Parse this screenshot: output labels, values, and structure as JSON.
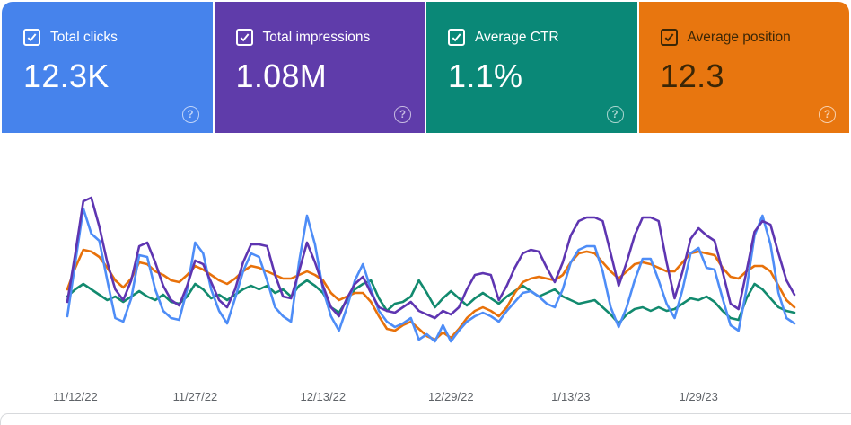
{
  "cards": [
    {
      "id": "total-clicks",
      "label": "Total clicks",
      "value": "12.3K",
      "bg": "#4683ec",
      "fg": "#ffffff",
      "help_fg": "#ffffff",
      "checked": true
    },
    {
      "id": "total-impressions",
      "label": "Total impressions",
      "value": "1.08M",
      "bg": "#5f3caa",
      "fg": "#ffffff",
      "help_fg": "#ffffff",
      "checked": true
    },
    {
      "id": "average-ctr",
      "label": "Average CTR",
      "value": "1.1%",
      "bg": "#0a8877",
      "fg": "#ffffff",
      "help_fg": "#ffffff",
      "checked": true
    },
    {
      "id": "average-position",
      "label": "Average position",
      "value": "12.3",
      "bg": "#e8760f",
      "fg": "#3b2606",
      "help_fg": "#ffffff",
      "checked": true
    }
  ],
  "icons": {
    "help_glyph": "?",
    "checkbox_state": "checked"
  },
  "chart_data": {
    "type": "line",
    "title": "",
    "xlabel": "",
    "ylabel": "",
    "y_axis": "hidden - each series independently normalized; values are % of plot height (0 = bottom, 100 = top)",
    "grid": false,
    "legend_position": "none (metric cards above act as legend)",
    "tick_color": "#5f6368",
    "x_ticks": [
      {
        "label": "11/12/22",
        "day": 1
      },
      {
        "label": "11/27/22",
        "day": 16
      },
      {
        "label": "12/13/22",
        "day": 32
      },
      {
        "label": "12/29/22",
        "day": 48
      },
      {
        "label": "1/13/23",
        "day": 63
      },
      {
        "label": "1/29/23",
        "day": 79
      }
    ],
    "n_points": 92,
    "series": [
      {
        "name": "Total clicks",
        "color": "#4e8df7",
        "values": [
          25,
          55,
          85,
          71,
          67,
          45,
          24,
          22,
          35,
          59,
          58,
          40,
          28,
          24,
          23,
          40,
          66,
          60,
          40,
          28,
          21,
          35,
          50,
          60,
          58,
          45,
          30,
          25,
          22,
          55,
          81,
          65,
          40,
          25,
          17,
          30,
          45,
          54,
          40,
          28,
          22,
          19,
          21,
          24,
          12,
          15,
          11,
          20,
          11,
          17,
          22,
          25,
          27,
          25,
          22,
          28,
          33,
          38,
          39,
          36,
          32,
          30,
          40,
          55,
          62,
          64,
          64,
          50,
          30,
          19,
          30,
          45,
          57,
          57,
          45,
          32,
          24,
          40,
          60,
          63,
          52,
          51,
          35,
          20,
          17,
          40,
          70,
          81,
          65,
          38,
          24,
          21
        ]
      },
      {
        "name": "Total impressions",
        "color": "#5e35b1",
        "values": [
          33,
          60,
          89,
          91,
          75,
          55,
          40,
          34,
          45,
          64,
          66,
          55,
          42,
          34,
          31,
          42,
          56,
          54,
          44,
          34,
          30,
          40,
          55,
          65,
          65,
          64,
          48,
          36,
          35,
          50,
          66,
          55,
          42,
          30,
          25,
          35,
          43,
          47,
          38,
          30,
          28,
          27,
          30,
          33,
          28,
          26,
          24,
          28,
          26,
          30,
          40,
          48,
          49,
          48,
          34,
          42,
          52,
          60,
          62,
          61,
          52,
          44,
          55,
          70,
          78,
          80,
          80,
          78,
          60,
          42,
          55,
          70,
          80,
          80,
          78,
          55,
          35,
          50,
          68,
          74,
          70,
          67,
          50,
          32,
          29,
          50,
          72,
          78,
          76,
          60,
          45,
          37
        ]
      },
      {
        "name": "Average CTR",
        "color": "#128a6e",
        "values": [
          36,
          40,
          43,
          40,
          37,
          34,
          36,
          33,
          36,
          39,
          36,
          34,
          37,
          33,
          32,
          36,
          43,
          40,
          35,
          37,
          34,
          37,
          40,
          42,
          40,
          42,
          38,
          40,
          36,
          42,
          45,
          42,
          38,
          30,
          27,
          34,
          40,
          43,
          45,
          35,
          28,
          32,
          33,
          36,
          45,
          38,
          30,
          35,
          39,
          35,
          31,
          35,
          38,
          35,
          32,
          36,
          39,
          42,
          39,
          36,
          38,
          40,
          36,
          34,
          32,
          33,
          34,
          30,
          26,
          21,
          26,
          29,
          30,
          28,
          30,
          28,
          29,
          32,
          35,
          34,
          36,
          33,
          28,
          24,
          23,
          35,
          43,
          40,
          35,
          30,
          28,
          27
        ]
      },
      {
        "name": "Average position",
        "color": "#e8710a",
        "values": [
          40,
          52,
          62,
          61,
          58,
          52,
          45,
          41,
          46,
          55,
          54,
          50,
          48,
          45,
          44,
          48,
          53,
          51,
          48,
          45,
          43,
          46,
          50,
          53,
          52,
          50,
          48,
          46,
          46,
          48,
          50,
          48,
          45,
          38,
          34,
          36,
          38,
          38,
          33,
          25,
          18,
          17,
          20,
          22,
          18,
          14,
          12,
          16,
          13,
          18,
          24,
          28,
          30,
          28,
          25,
          30,
          38,
          44,
          46,
          47,
          46,
          45,
          48,
          55,
          60,
          61,
          60,
          55,
          50,
          46,
          50,
          54,
          55,
          54,
          52,
          50,
          50,
          55,
          60,
          61,
          60,
          59,
          52,
          47,
          46,
          50,
          53,
          53,
          50,
          42,
          34,
          30
        ]
      }
    ]
  }
}
